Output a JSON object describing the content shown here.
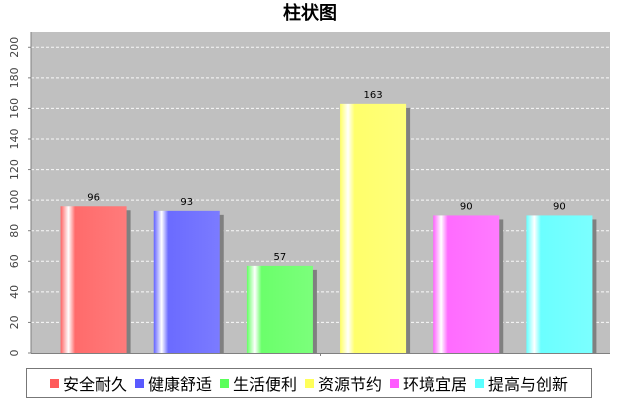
{
  "chart_data": {
    "type": "bar",
    "title": "柱状图",
    "xlabel": "",
    "ylabel": "",
    "ylim": [
      0,
      210
    ],
    "yticks": [
      0,
      20,
      40,
      60,
      80,
      100,
      120,
      140,
      160,
      180,
      200
    ],
    "grid": true,
    "legend_position": "bottom",
    "categories": [
      "安全耐久",
      "健康舒适",
      "生活便利",
      "资源节约",
      "环境宜居",
      "提高与创新"
    ],
    "values": [
      96,
      93,
      57,
      163,
      90,
      90
    ],
    "data_labels": [
      "96",
      "93",
      "57",
      "163",
      "90",
      "90"
    ],
    "colors": [
      "#ff5a5a",
      "#5a5aff",
      "#5aff5a",
      "#ffff5a",
      "#ff5aff",
      "#5affff"
    ],
    "plot_background": "#c0c0c0"
  }
}
